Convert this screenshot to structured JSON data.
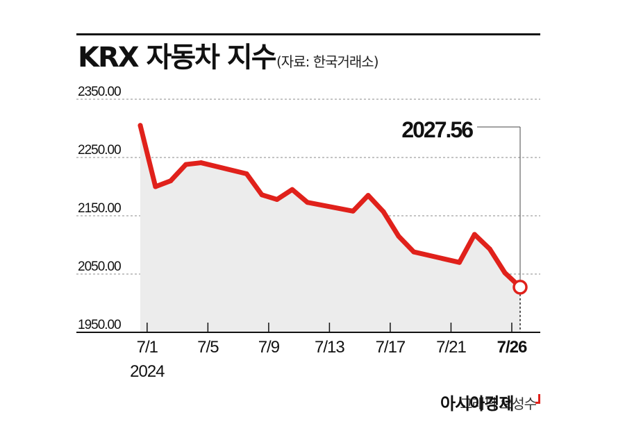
{
  "title": "KRX 자동차 지수",
  "source": "(자료: 한국거래소)",
  "credit": "그래픽 오성수",
  "brand": "아시아경제",
  "colors": {
    "line": "#e0211b",
    "area": "#ececec",
    "grid": "#888888",
    "axis": "#111111"
  },
  "chart_data": {
    "type": "area",
    "title": "KRX 자동차 지수",
    "xlabel": "",
    "ylabel": "",
    "ylim": [
      1950,
      2350
    ],
    "yticks": [
      "2350.00",
      "2250.00",
      "2150.00",
      "2050.00",
      "1950.00"
    ],
    "xticks": [
      {
        "label": "7/1",
        "sublabel": "2024",
        "day": 1
      },
      {
        "label": "7/5",
        "day": 5
      },
      {
        "label": "7/9",
        "day": 9
      },
      {
        "label": "7/13",
        "day": 13
      },
      {
        "label": "7/17",
        "day": 17
      },
      {
        "label": "7/21",
        "day": 21
      },
      {
        "label": "7/26",
        "day": 25,
        "bold": true
      }
    ],
    "series": [
      {
        "values": [
          {
            "x": "2024-07-01",
            "y": 2305
          },
          {
            "x": "2024-07-02",
            "y": 2200
          },
          {
            "x": "2024-07-03",
            "y": 2210
          },
          {
            "x": "2024-07-04",
            "y": 2238
          },
          {
            "x": "2024-07-05",
            "y": 2241
          },
          {
            "x": "2024-07-08",
            "y": 2222
          },
          {
            "x": "2024-07-09",
            "y": 2186
          },
          {
            "x": "2024-07-10",
            "y": 2178
          },
          {
            "x": "2024-07-11",
            "y": 2195
          },
          {
            "x": "2024-07-12",
            "y": 2173
          },
          {
            "x": "2024-07-15",
            "y": 2158
          },
          {
            "x": "2024-07-16",
            "y": 2185
          },
          {
            "x": "2024-07-17",
            "y": 2157
          },
          {
            "x": "2024-07-18",
            "y": 2115
          },
          {
            "x": "2024-07-19",
            "y": 2088
          },
          {
            "x": "2024-07-22",
            "y": 2070
          },
          {
            "x": "2024-07-23",
            "y": 2118
          },
          {
            "x": "2024-07-24",
            "y": 2093
          },
          {
            "x": "2024-07-25",
            "y": 2052
          },
          {
            "x": "2024-07-26",
            "y": 2027.56
          }
        ]
      }
    ],
    "annotation": {
      "text": "2027.56",
      "x": "2024-07-26",
      "y": 2027.56
    }
  }
}
